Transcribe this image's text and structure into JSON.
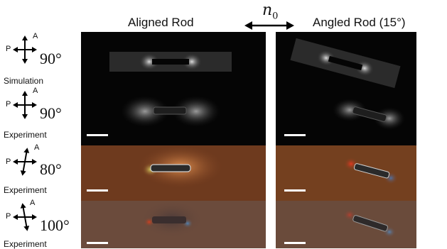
{
  "header": {
    "aligned_title": "Aligned Rod",
    "angled_title": "Angled Rod (15°)",
    "director_symbol": "n",
    "director_subscript": "0"
  },
  "polarizer": {
    "p_label": "P",
    "a_label": "A"
  },
  "rows": [
    {
      "angle": "90°",
      "label": "Simulation"
    },
    {
      "angle": "90°",
      "label": "Experiment"
    },
    {
      "angle": "80°",
      "label": "Experiment"
    },
    {
      "angle": "100°",
      "label": "Experiment"
    }
  ],
  "colors": {
    "dark_panel": "#050505",
    "orange_panel_80": "#7a3f20",
    "orange_panel_100": "#6a4a3a",
    "scale_bar": "#ffffff"
  }
}
